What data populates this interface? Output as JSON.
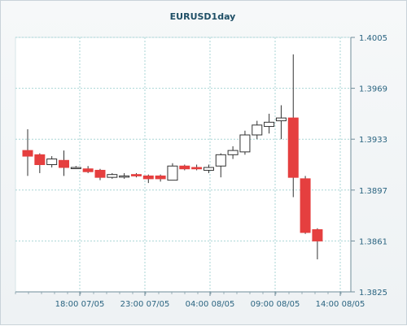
{
  "chart_data": {
    "type": "candlestick",
    "title": "EURUSD1day",
    "xlabel": "",
    "ylabel": "",
    "ylim": [
      1.3825,
      1.4005
    ],
    "y_ticks": [
      "1.4005",
      "1.3969",
      "1.3933",
      "1.3897",
      "1.3861",
      "1.3825"
    ],
    "x_tick_labels": [
      "18:00 07/05",
      "23:00 07/05",
      "04:00 08/05",
      "09:00 08/05",
      "14:00 08/05"
    ],
    "grid": true,
    "colors": {
      "bearish": "#e53f3f",
      "bullish": "#ffffff",
      "outline": "#333333",
      "grid": "#a9d6d6",
      "axis_text": "#2a6480",
      "title": "#1f4f66"
    },
    "candles": [
      {
        "open": 1.3925,
        "high": 1.394,
        "low": 1.3907,
        "close": 1.3921
      },
      {
        "open": 1.3922,
        "high": 1.3923,
        "low": 1.3909,
        "close": 1.3915
      },
      {
        "open": 1.3915,
        "high": 1.3921,
        "low": 1.3913,
        "close": 1.3919
      },
      {
        "open": 1.3918,
        "high": 1.3925,
        "low": 1.3907,
        "close": 1.3913
      },
      {
        "open": 1.3913,
        "high": 1.3914,
        "low": 1.3912,
        "close": 1.3913
      },
      {
        "open": 1.3912,
        "high": 1.3914,
        "low": 1.3909,
        "close": 1.391
      },
      {
        "open": 1.3911,
        "high": 1.3912,
        "low": 1.3904,
        "close": 1.3906
      },
      {
        "open": 1.3906,
        "high": 1.3909,
        "low": 1.3905,
        "close": 1.3908
      },
      {
        "open": 1.3907,
        "high": 1.3909,
        "low": 1.3905,
        "close": 1.3907
      },
      {
        "open": 1.3908,
        "high": 1.3909,
        "low": 1.3906,
        "close": 1.3907
      },
      {
        "open": 1.3907,
        "high": 1.3908,
        "low": 1.3902,
        "close": 1.3905
      },
      {
        "open": 1.3907,
        "high": 1.3908,
        "low": 1.3903,
        "close": 1.3905
      },
      {
        "open": 1.3904,
        "high": 1.3916,
        "low": 1.3904,
        "close": 1.3914
      },
      {
        "open": 1.3914,
        "high": 1.3915,
        "low": 1.3911,
        "close": 1.3912
      },
      {
        "open": 1.3913,
        "high": 1.3915,
        "low": 1.3911,
        "close": 1.3912
      },
      {
        "open": 1.3911,
        "high": 1.3915,
        "low": 1.3909,
        "close": 1.3913
      },
      {
        "open": 1.3914,
        "high": 1.3923,
        "low": 1.3906,
        "close": 1.3922
      },
      {
        "open": 1.3922,
        "high": 1.3928,
        "low": 1.3919,
        "close": 1.3925
      },
      {
        "open": 1.3924,
        "high": 1.3939,
        "low": 1.3922,
        "close": 1.3936
      },
      {
        "open": 1.3936,
        "high": 1.3946,
        "low": 1.3933,
        "close": 1.3943
      },
      {
        "open": 1.3942,
        "high": 1.3951,
        "low": 1.3937,
        "close": 1.3945
      },
      {
        "open": 1.3946,
        "high": 1.3957,
        "low": 1.3933,
        "close": 1.3948
      },
      {
        "open": 1.3948,
        "high": 1.3993,
        "low": 1.3892,
        "close": 1.3906
      },
      {
        "open": 1.3905,
        "high": 1.3907,
        "low": 1.3866,
        "close": 1.3867
      },
      {
        "open": 1.3869,
        "high": 1.387,
        "low": 1.3848,
        "close": 1.3861
      }
    ]
  }
}
